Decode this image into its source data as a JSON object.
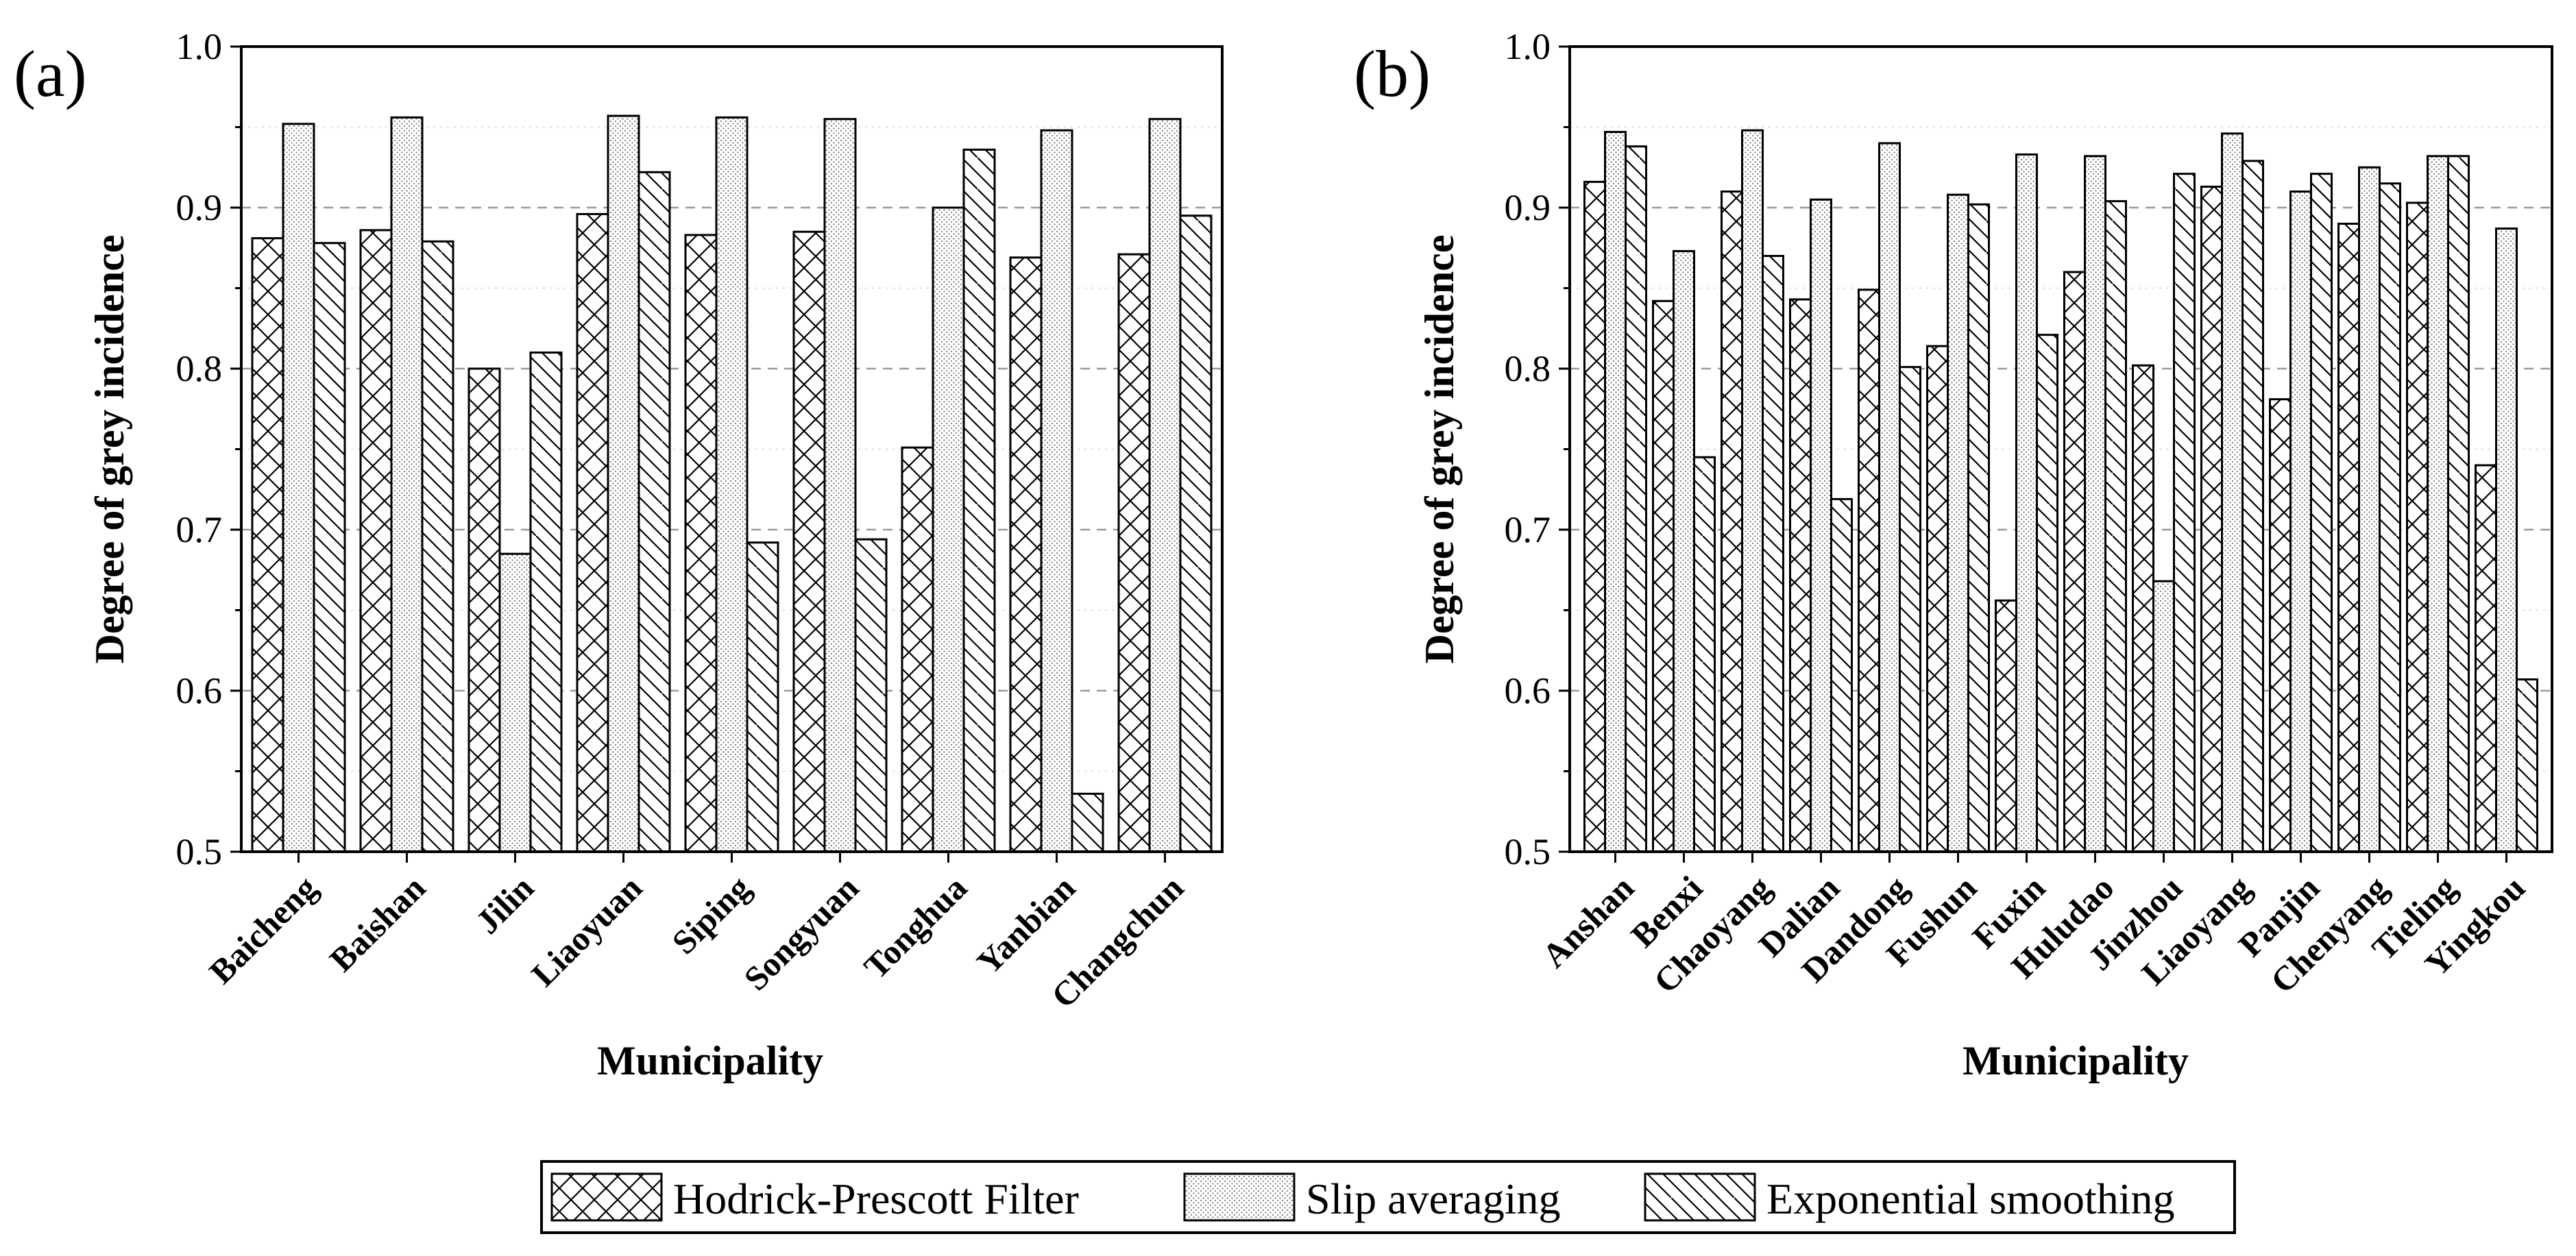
{
  "legend": [
    {
      "name": "Hodrick-Prescott Filter",
      "pattern": "crosshatch"
    },
    {
      "name": "Slip averaging",
      "pattern": "dots"
    },
    {
      "name": "Exponential smoothing",
      "pattern": "backslash"
    }
  ],
  "colors": {
    "stroke": "#000000",
    "dot": "#8a8a8a",
    "grid": "#999999",
    "background": "#ffffff"
  },
  "chart_data": [
    {
      "type": "bar",
      "panel_label": "(a)",
      "title": "",
      "xlabel": "Municipality",
      "ylabel": "Degree of grey incidence",
      "ylim": [
        0.5,
        1.0
      ],
      "yticks": [
        0.5,
        0.6,
        0.7,
        0.8,
        0.9,
        1.0
      ],
      "ytick_labels": [
        "0.5",
        "0.6",
        "0.7",
        "0.8",
        "0.9",
        "1.0"
      ],
      "grid": "dashed horizontal",
      "categories": [
        "Baicheng",
        "Baishan",
        "Jilin",
        "Liaoyuan",
        "Siping",
        "Songyuan",
        "Tonghua",
        "Yanbian",
        "Changchun"
      ],
      "series": [
        {
          "name": "Hodrick-Prescott Filter",
          "values": [
            0.881,
            0.886,
            0.8,
            0.896,
            0.883,
            0.885,
            0.751,
            0.869,
            0.871
          ]
        },
        {
          "name": "Slip averaging",
          "values": [
            0.952,
            0.956,
            0.685,
            0.957,
            0.956,
            0.955,
            0.9,
            0.948,
            0.955
          ]
        },
        {
          "name": "Exponential smoothing",
          "values": [
            0.878,
            0.879,
            0.81,
            0.922,
            0.692,
            0.694,
            0.936,
            0.536,
            0.895
          ]
        }
      ]
    },
    {
      "type": "bar",
      "panel_label": "(b)",
      "title": "",
      "xlabel": "Municipality",
      "ylabel": "Degree of grey incidence",
      "ylim": [
        0.5,
        1.0
      ],
      "yticks": [
        0.5,
        0.6,
        0.7,
        0.8,
        0.9,
        1.0
      ],
      "ytick_labels": [
        "0.5",
        "0.6",
        "0.7",
        "0.8",
        "0.9",
        "1.0"
      ],
      "grid": "dashed horizontal",
      "categories": [
        "Anshan",
        "Benxi",
        "Chaoyang",
        "Dalian",
        "Dandong",
        "Fushun",
        "Fuxin",
        "Huludao",
        "Jinzhou",
        "Liaoyang",
        "Panjin",
        "Chenyang",
        "Tieling",
        "Yingkou"
      ],
      "series": [
        {
          "name": "Hodrick-Prescott Filter",
          "values": [
            0.916,
            0.842,
            0.91,
            0.843,
            0.849,
            0.814,
            0.656,
            0.86,
            0.802,
            0.913,
            0.781,
            0.89,
            0.903,
            0.74
          ]
        },
        {
          "name": "Slip averaging",
          "values": [
            0.947,
            0.873,
            0.948,
            0.905,
            0.94,
            0.908,
            0.933,
            0.932,
            0.668,
            0.946,
            0.91,
            0.925,
            0.932,
            0.887
          ]
        },
        {
          "name": "Exponential smoothing",
          "values": [
            0.938,
            0.745,
            0.87,
            0.719,
            0.801,
            0.902,
            0.821,
            0.904,
            0.921,
            0.929,
            0.921,
            0.915,
            0.932,
            0.607
          ]
        }
      ]
    }
  ]
}
